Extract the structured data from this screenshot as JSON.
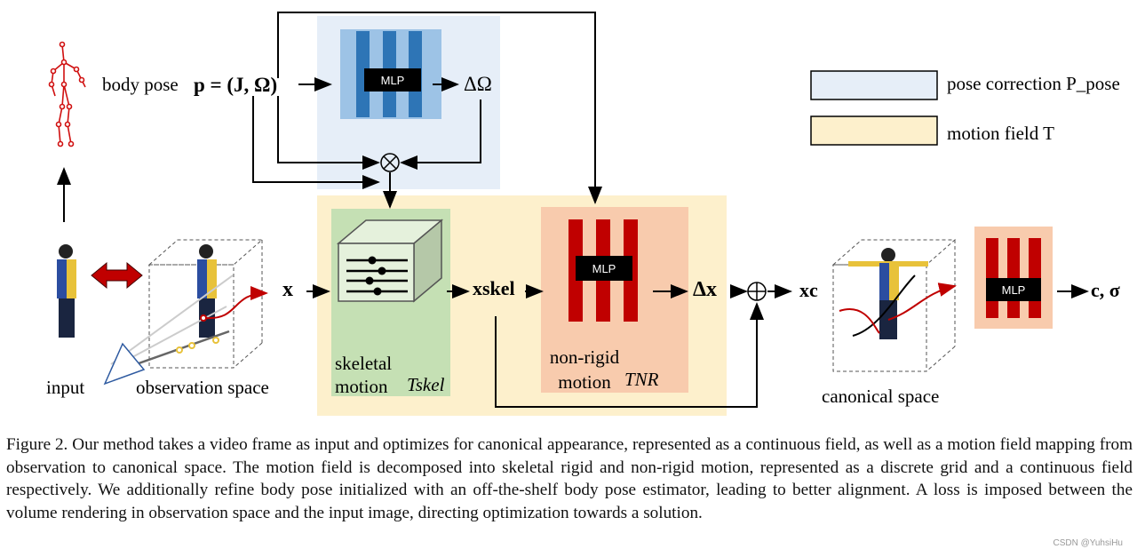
{
  "figure": {
    "body_pose_label": "body pose",
    "body_pose_formula": "p = (J, Ω)",
    "mlp_label": "MLP",
    "delta_omega": "ΔΩ",
    "x_label": "x",
    "x_skel_label": "xskel",
    "delta_x_label": "Δx",
    "x_c_label": "xc",
    "output_label": "c, σ",
    "input_label": "input",
    "observation_space_label": "observation space",
    "canonical_space_label": "canonical space",
    "skeletal_motion_label": "skeletal motion",
    "t_skel": "Tskel",
    "non_rigid_motion_label": "non-rigid motion",
    "t_nr": "TNR",
    "legend": [
      {
        "label": "pose correction P_pose",
        "color": "#e6eef8"
      },
      {
        "label": "motion field T",
        "color": "#fdf0cc"
      }
    ],
    "colors": {
      "pose_correction_bg": "#e6eef8",
      "motion_field_bg": "#fdf0cc",
      "skeletal_bg": "#c5e0b4",
      "nonrigid_bg": "#f8cbad",
      "mlp_blue_bg": "#9dc3e6",
      "mlp_blue_bar": "#2e75b6",
      "mlp_red_bar": "#c00000"
    }
  },
  "caption": "Figure 2. Our method takes a video frame as input and optimizes for canonical appearance, represented as a continuous field, as well as a motion field mapping from observation to canonical space. The motion field is decomposed into skeletal rigid and non-rigid motion, represented as a discrete grid and a continuous field respectively. We additionally refine body pose initialized with an off-the-shelf body pose estimator, leading to better alignment. A loss is imposed between the volume rendering in observation space and the input image, directing optimization towards a solution.",
  "watermark": "CSDN @YuhsiHu"
}
